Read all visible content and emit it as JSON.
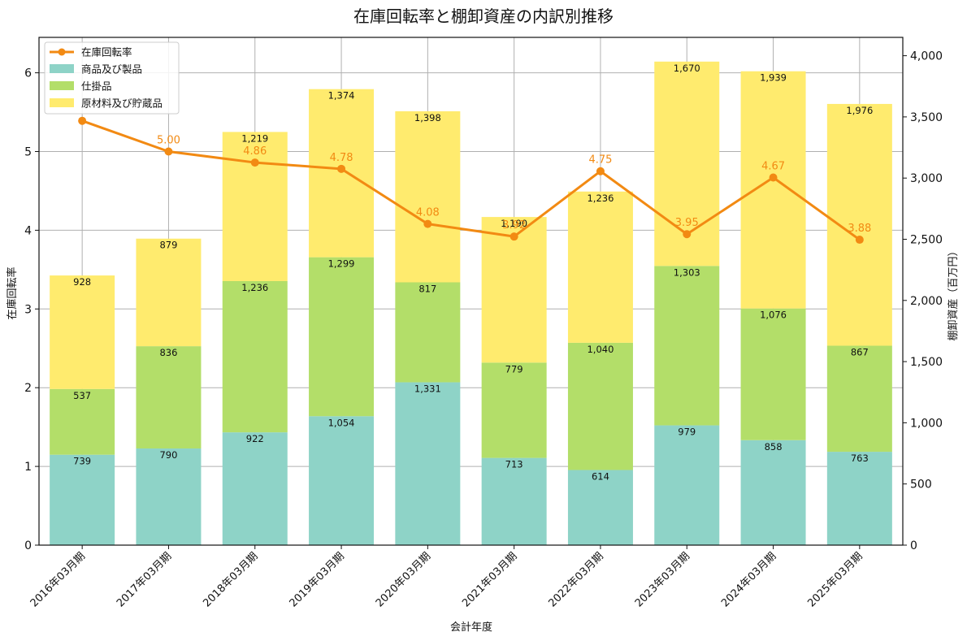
{
  "chart_data": {
    "type": "bar",
    "title": "在庫回転率と棚卸資産の内訳別推移",
    "xlabel": "会計年度",
    "ylabel_left": "在庫回転率",
    "ylabel_right": "棚卸資産（百万円）",
    "categories": [
      "2016年03月期",
      "2017年03月期",
      "2018年03月期",
      "2019年03月期",
      "2020年03月期",
      "2021年03月期",
      "2022年03月期",
      "2023年03月期",
      "2024年03月期",
      "2025年03月期"
    ],
    "ylim_left": [
      0,
      6.45
    ],
    "left_ticks": [
      0,
      1,
      2,
      3,
      4,
      5,
      6
    ],
    "ylim_right": [
      0,
      4150
    ],
    "right_ticks": [
      0,
      500,
      1000,
      1500,
      2000,
      2500,
      3000,
      3500,
      4000
    ],
    "right_tick_labels": [
      "0",
      "500",
      "1,000",
      "1,500",
      "2,000",
      "2,500",
      "3,000",
      "3,500",
      "4,000"
    ],
    "series": [
      {
        "name": "商品及び製品",
        "color": "#8ed3c7",
        "values": [
          739,
          790,
          922,
          1054,
          1331,
          713,
          614,
          979,
          858,
          763
        ],
        "labels": [
          "739",
          "790",
          "922",
          "1,054",
          "1,331",
          "713",
          "614",
          "979",
          "858",
          "763"
        ]
      },
      {
        "name": "仕掛品",
        "color": "#b3de69",
        "values": [
          537,
          836,
          1236,
          1299,
          817,
          779,
          1040,
          1303,
          1076,
          867
        ],
        "labels": [
          "537",
          "836",
          "1,236",
          "1,299",
          "817",
          "779",
          "1,040",
          "1,303",
          "1,076",
          "867"
        ]
      },
      {
        "name": "原材料及び貯蔵品",
        "color": "#ffeb6e",
        "values": [
          928,
          879,
          1219,
          1374,
          1398,
          1190,
          1236,
          1670,
          1939,
          1976
        ],
        "labels": [
          "928",
          "879",
          "1,219",
          "1,374",
          "1,398",
          "1,190",
          "1,236",
          "1,670",
          "1,939",
          "1,976"
        ]
      }
    ],
    "line": {
      "name": "在庫回転率",
      "color": "#f28a13",
      "values": [
        5.39,
        5.0,
        4.86,
        4.78,
        4.08,
        3.92,
        4.75,
        3.95,
        4.67,
        3.88
      ],
      "labels": [
        "",
        "5.00",
        "4.86",
        "4.78",
        "4.08",
        "3.92",
        "4.75",
        "3.95",
        "4.67",
        "3.88"
      ]
    },
    "grid": true,
    "legend_position": "top-left"
  }
}
